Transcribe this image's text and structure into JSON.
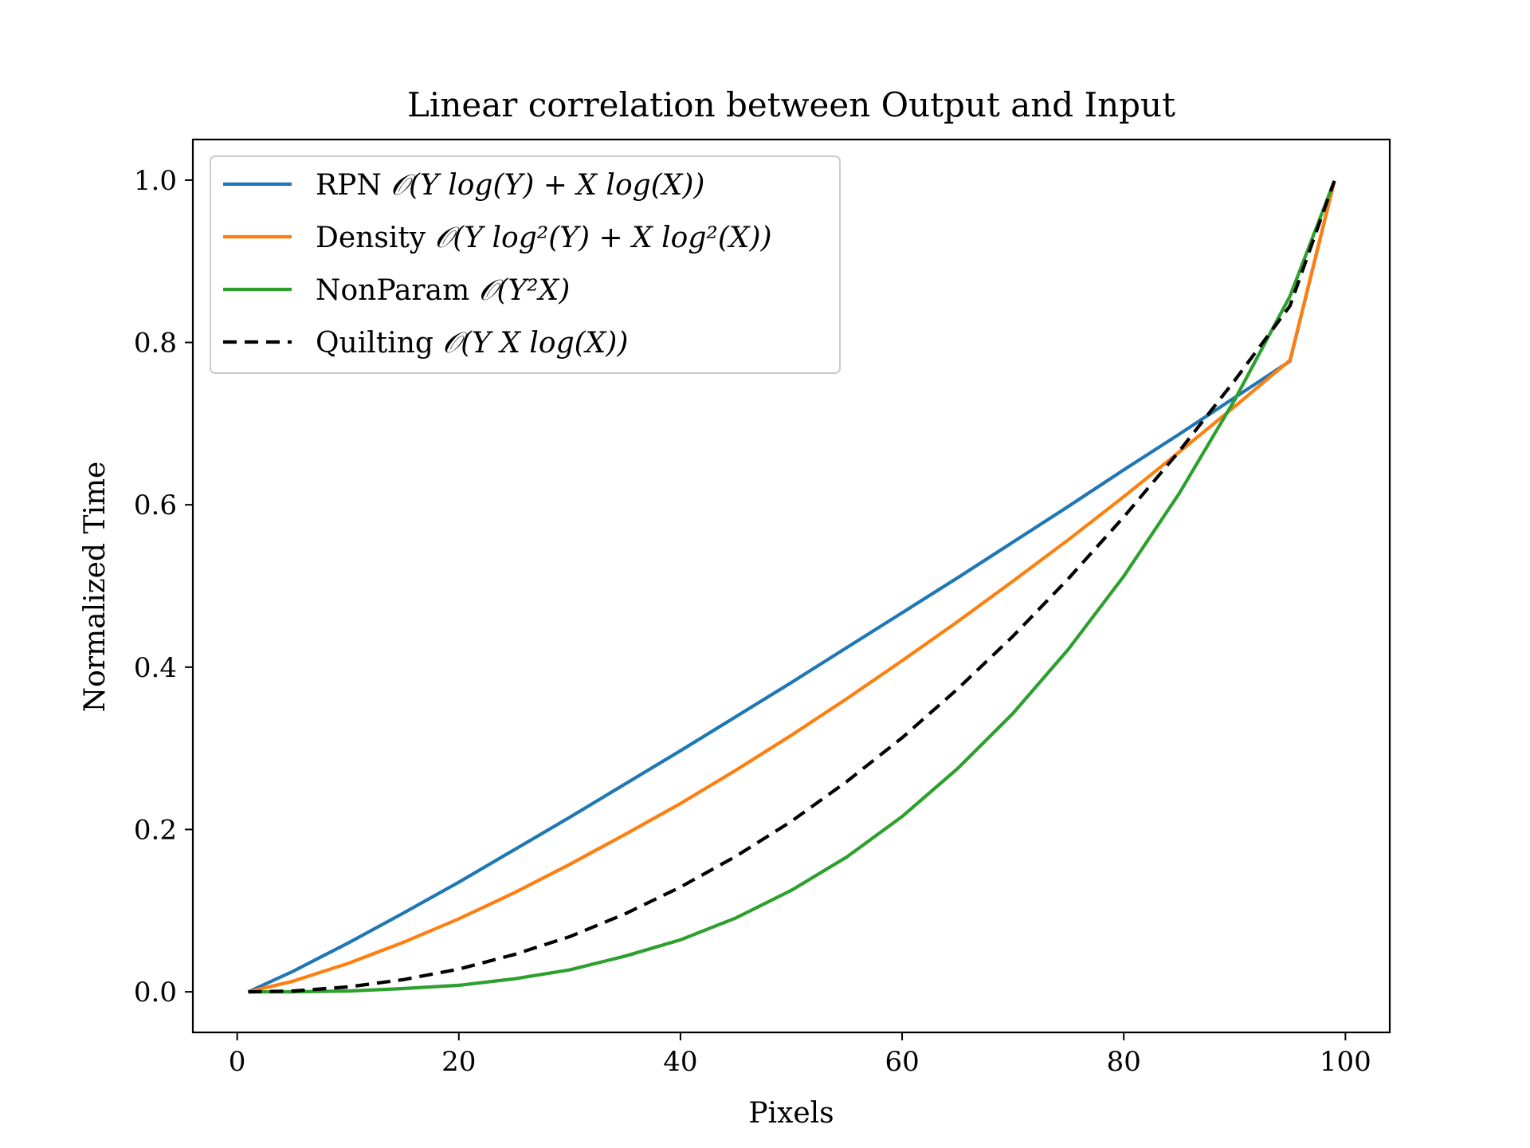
{
  "chart_data": {
    "type": "line",
    "title": "Linear correlation between Output and Input",
    "xlabel": "Pixels",
    "ylabel": "Normalized Time",
    "xlim": [
      -4,
      104
    ],
    "ylim": [
      -0.05,
      1.05
    ],
    "xticks": [
      0,
      20,
      40,
      60,
      80,
      100
    ],
    "xtick_labels": [
      "0",
      "20",
      "40",
      "60",
      "80",
      "100"
    ],
    "yticks": [
      0.0,
      0.2,
      0.4,
      0.6,
      0.8,
      1.0
    ],
    "ytick_labels": [
      "0.0",
      "0.2",
      "0.4",
      "0.6",
      "0.8",
      "1.0"
    ],
    "grid": false,
    "legend_position": "top-left",
    "x": [
      1,
      5,
      10,
      15,
      20,
      25,
      30,
      35,
      40,
      45,
      50,
      55,
      60,
      65,
      70,
      75,
      80,
      85,
      90,
      95,
      99
    ],
    "series": [
      {
        "name": "RPN O(Y log(Y) + X log(X))",
        "color": "#1f77b4",
        "dash": "solid",
        "values": [
          0.0,
          0.025,
          0.06,
          0.097,
          0.135,
          0.175,
          0.215,
          0.256,
          0.297,
          0.339,
          0.381,
          0.424,
          0.467,
          0.51,
          0.554,
          0.598,
          0.643,
          0.687,
          0.732,
          0.777,
          0.999
        ]
      },
      {
        "name": "Density O(Y log²(Y) + X log²(X))",
        "color": "#ff7f0e",
        "dash": "solid",
        "values": [
          0.0,
          0.013,
          0.035,
          0.061,
          0.09,
          0.122,
          0.157,
          0.194,
          0.232,
          0.273,
          0.316,
          0.361,
          0.408,
          0.456,
          0.506,
          0.557,
          0.61,
          0.665,
          0.721,
          0.778,
          0.999
        ]
      },
      {
        "name": "NonParam O(Y²X)",
        "color": "#2ca02c",
        "dash": "solid",
        "values": [
          0.0,
          0.0,
          0.001,
          0.004,
          0.008,
          0.016,
          0.027,
          0.044,
          0.064,
          0.091,
          0.125,
          0.166,
          0.216,
          0.275,
          0.343,
          0.422,
          0.512,
          0.614,
          0.729,
          0.857,
          0.999
        ]
      },
      {
        "name": "Quilting O(Y X log(X))",
        "color": "#000000",
        "dash": "dashed",
        "values": [
          0.0,
          0.001,
          0.006,
          0.015,
          0.028,
          0.046,
          0.068,
          0.096,
          0.129,
          0.167,
          0.21,
          0.259,
          0.313,
          0.373,
          0.438,
          0.509,
          0.585,
          0.666,
          0.753,
          0.845,
          0.999
        ]
      }
    ],
    "legend": [
      {
        "prefix": "RPN ",
        "formula": "𝒪(Y log(Y) + X log(X))"
      },
      {
        "prefix": "Density ",
        "formula": "𝒪(Y log²(Y) + X log²(X))"
      },
      {
        "prefix": "NonParam ",
        "formula": "𝒪(Y²X)"
      },
      {
        "prefix": "Quilting ",
        "formula": "𝒪(Y X log(X))"
      }
    ]
  }
}
